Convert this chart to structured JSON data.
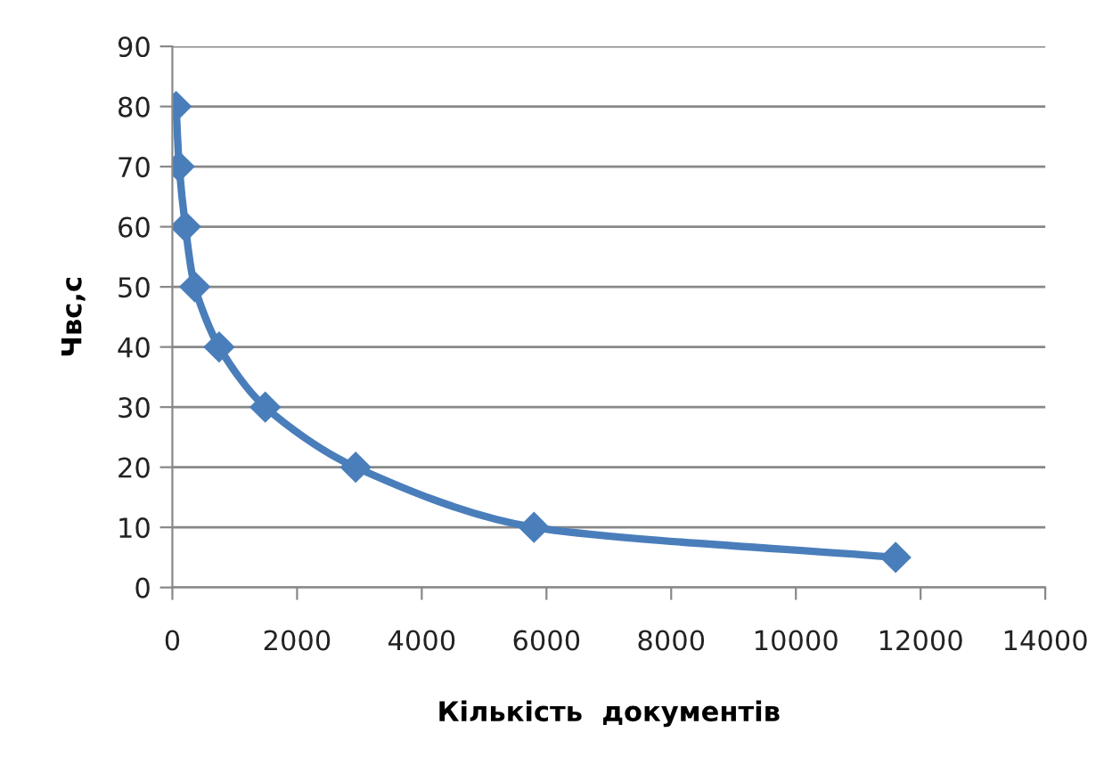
{
  "chart_data": {
    "type": "line",
    "xlabel": "Кількість  документів",
    "ylabel": "Чвс,с",
    "x": [
      60,
      110,
      210,
      360,
      750,
      1490,
      2940,
      5800,
      11600
    ],
    "series": [
      {
        "color": "#4a7ebb",
        "values": [
          80,
          70,
          60,
          50,
          40,
          30,
          20,
          10,
          5
        ]
      }
    ],
    "xlim": [
      0,
      14000
    ],
    "xticks": [
      0,
      2000,
      4000,
      6000,
      8000,
      10000,
      12000,
      14000
    ],
    "ylim": [
      0,
      90
    ],
    "yticks": [
      0,
      10,
      20,
      30,
      40,
      50,
      60,
      70,
      80,
      90
    ],
    "grid": "y",
    "legend": false,
    "marker": "diamond",
    "line_style": "solid"
  }
}
